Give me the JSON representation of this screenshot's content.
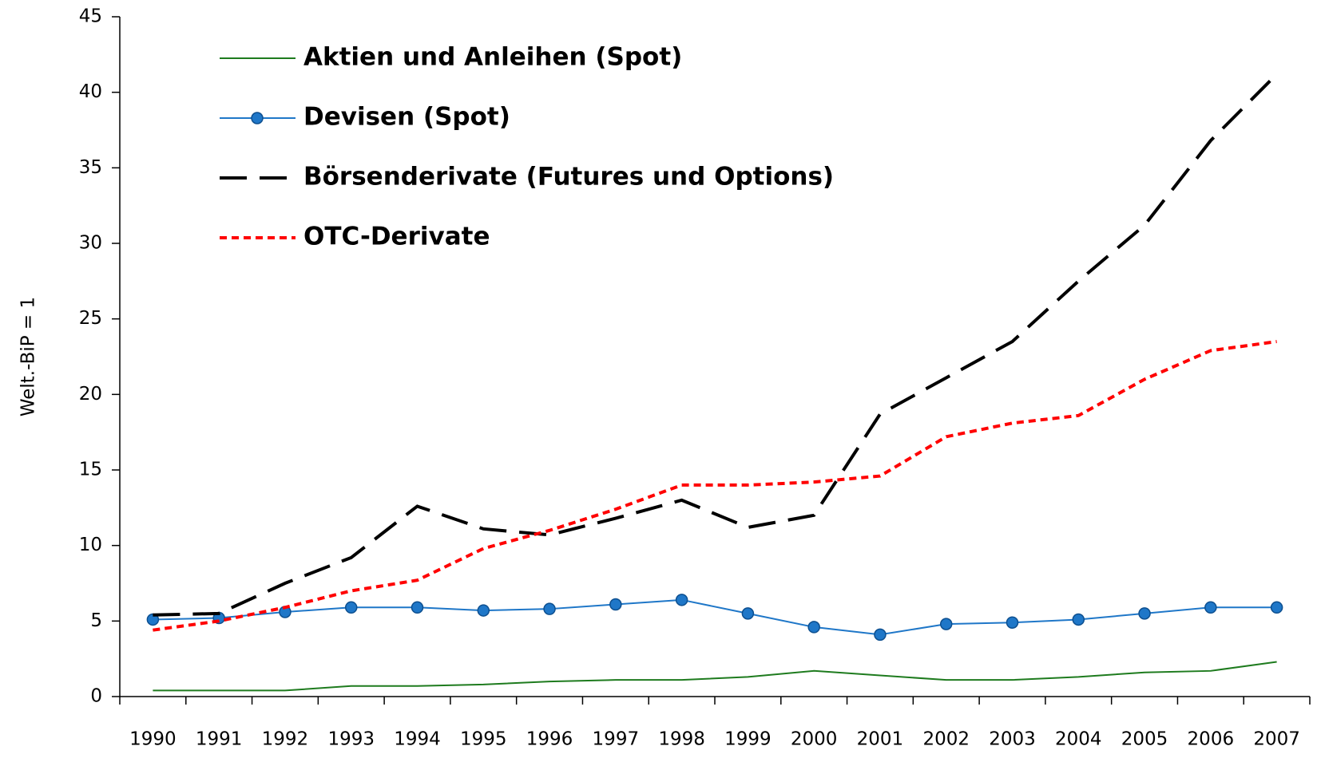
{
  "chart_data": {
    "type": "line",
    "y_label": "Welt.-BiP = 1",
    "categories": [
      "1990",
      "1991",
      "1992",
      "1993",
      "1994",
      "1995",
      "1996",
      "1997",
      "1998",
      "1999",
      "2000",
      "2001",
      "2002",
      "2003",
      "2004",
      "2005",
      "2006",
      "2007"
    ],
    "series": [
      {
        "name": "Aktien und Anleihen (Spot)",
        "color": "#1e7b1e",
        "line_style": "solid",
        "marker": "none",
        "values": [
          0.4,
          0.4,
          0.4,
          0.7,
          0.7,
          0.8,
          1.0,
          1.1,
          1.1,
          1.3,
          1.7,
          1.4,
          1.1,
          1.1,
          1.3,
          1.6,
          1.7,
          2.3
        ]
      },
      {
        "name": "Devisen (Spot)",
        "color": "#1f77c8",
        "line_style": "solid",
        "marker": "circle",
        "values": [
          5.1,
          5.2,
          5.6,
          5.9,
          5.9,
          5.7,
          5.8,
          6.1,
          6.4,
          5.5,
          4.6,
          4.1,
          4.8,
          4.9,
          5.1,
          5.5,
          5.9,
          5.9
        ]
      },
      {
        "name": "Börsenderivate (Futures und Options)",
        "color": "#000000",
        "line_style": "dashed",
        "marker": "none",
        "values": [
          5.4,
          5.5,
          7.5,
          9.2,
          12.6,
          11.1,
          10.7,
          11.8,
          13.0,
          11.2,
          12.0,
          18.7,
          21.1,
          23.5,
          27.5,
          31.2,
          36.8,
          41.2
        ]
      },
      {
        "name": "OTC-Derivate",
        "color": "#ff0000",
        "line_style": "dotted",
        "marker": "none",
        "values": [
          4.4,
          5.0,
          5.9,
          7.0,
          7.7,
          9.8,
          11.0,
          12.4,
          14.0,
          14.0,
          14.2,
          14.6,
          17.2,
          18.1,
          18.6,
          21.0,
          22.9,
          23.5
        ]
      }
    ],
    "ylim": [
      0,
      45
    ],
    "yticks": [
      0,
      5,
      10,
      15,
      20,
      25,
      30,
      35,
      40,
      45
    ],
    "grid": false,
    "legend": "top-left"
  }
}
